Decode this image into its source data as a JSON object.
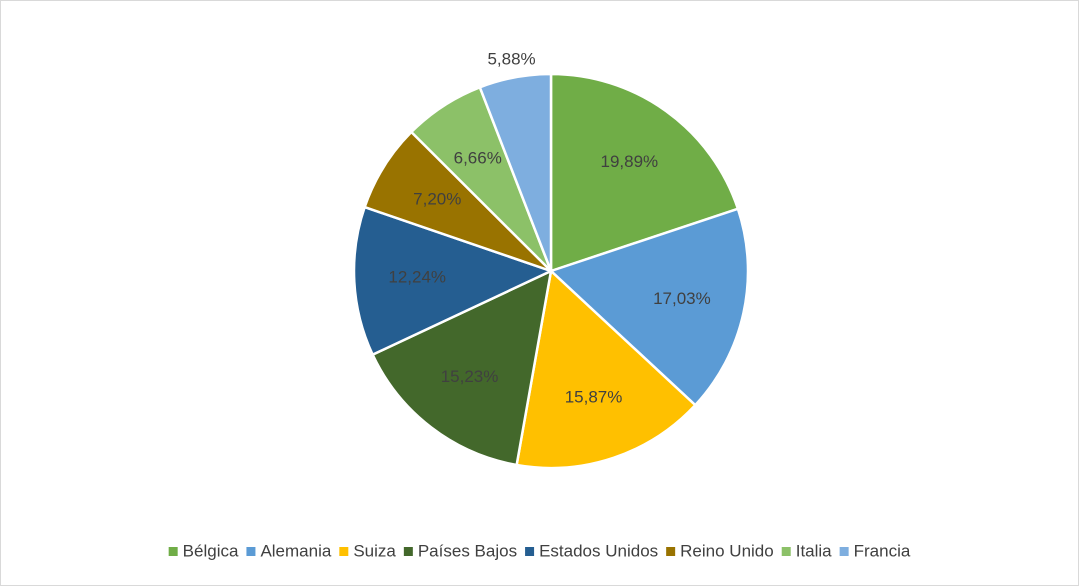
{
  "chart_data": {
    "type": "pie",
    "categories": [
      "Bélgica",
      "Alemania",
      "Suiza",
      "Países Bajos",
      "Estados Unidos",
      "Reino Unido",
      "Italia",
      "Francia"
    ],
    "values": [
      19.89,
      17.03,
      15.87,
      15.23,
      12.24,
      7.2,
      6.66,
      5.88
    ],
    "value_labels": [
      "19,89%",
      "17,03%",
      "15,87%",
      "15,23%",
      "12,24%",
      "7,20%",
      "6,66%",
      "5,88%"
    ],
    "colors": [
      "#70ad47",
      "#5b9bd5",
      "#ffc000",
      "#43682b",
      "#255e91",
      "#997300",
      "#8cc168",
      "#7eaedf"
    ],
    "legend": "bottom"
  }
}
